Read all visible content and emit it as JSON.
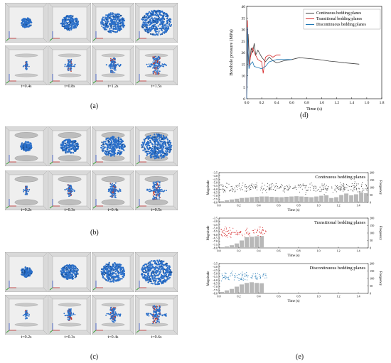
{
  "panels": {
    "a": {
      "label": "(a)",
      "times": [
        "t=0.4s",
        "t=0.8s",
        "t=1.2s",
        "t=1.5s"
      ]
    },
    "b": {
      "label": "(b)",
      "times": [
        "t=0.2s",
        "t=0.3s",
        "t=0.4s",
        "t=0.5s"
      ]
    },
    "c": {
      "label": "(c)",
      "times": [
        "t=0.2s",
        "t=0.3s",
        "t=0.4s",
        "t=0.6s"
      ]
    },
    "d": {
      "label": "(d)"
    },
    "e": {
      "label": "(e)"
    }
  },
  "colors": {
    "continuous": "#404040",
    "transitional": "#d62728",
    "discontinuous": "#1f77b4",
    "particle": "#2a6fc9",
    "bar": "#b8b8b8"
  },
  "chart_data": [
    {
      "type": "line",
      "xlabel": "Time (s)",
      "ylabel": "Borehole pressure (MPa)",
      "xlim": [
        0.0,
        1.8
      ],
      "ylim": [
        0,
        40
      ],
      "xticks": [
        "0.0",
        "0.2",
        "0.4",
        "0.6",
        "0.8",
        "1.0",
        "1.2",
        "1.4",
        "1.6",
        "1.8"
      ],
      "yticks": [
        "0",
        "5",
        "10",
        "15",
        "20",
        "25",
        "30",
        "35",
        "40"
      ],
      "legend": "top-right",
      "series": [
        {
          "name": "Continuous bedding planes",
          "color": "#404040",
          "x": [
            0,
            0.02,
            0.04,
            0.06,
            0.08,
            0.1,
            0.12,
            0.15,
            0.2,
            0.25,
            0.3,
            0.35,
            0.4,
            0.5,
            0.6,
            0.7,
            0.8,
            0.9,
            1.0,
            1.1,
            1.2,
            1.3,
            1.4,
            1.5
          ],
          "y": [
            0,
            28,
            15,
            22,
            20,
            24,
            19,
            21,
            18,
            16,
            18,
            16.5,
            15.5,
            16.5,
            17,
            17.8,
            17.5,
            17.2,
            16.8,
            16.3,
            16,
            15.6,
            15.3,
            15
          ]
        },
        {
          "name": "Transitional bedding planes",
          "color": "#d62728",
          "x": [
            0,
            0.01,
            0.02,
            0.03,
            0.05,
            0.08,
            0.1,
            0.15,
            0.2,
            0.22,
            0.25,
            0.3,
            0.35,
            0.4,
            0.45
          ],
          "y": [
            0,
            34,
            20,
            14,
            18,
            22,
            20,
            17,
            16,
            11,
            18,
            19,
            18,
            19,
            19
          ]
        },
        {
          "name": "Discontinuous bedding planes",
          "color": "#1f77b4",
          "x": [
            0,
            0.01,
            0.02,
            0.03,
            0.05,
            0.08,
            0.1,
            0.15,
            0.2,
            0.25,
            0.3,
            0.35,
            0.4,
            0.5,
            0.6
          ],
          "y": [
            0,
            31,
            20,
            13,
            15,
            16,
            14,
            13.5,
            13,
            14,
            16,
            16.5,
            17,
            17,
            17
          ]
        }
      ]
    },
    {
      "type": "scatter",
      "title": "Continuous bedding planes",
      "xlabel": "Time (s)",
      "ylabel": "Magnitude",
      "y2label": "Frequency",
      "xlim": [
        0,
        1.5
      ],
      "ylim": [
        -8.0,
        -3.5
      ],
      "y2lim": [
        0,
        200
      ],
      "xticks": [
        "0.0",
        "0.2",
        "0.4",
        "0.6",
        "0.8",
        "1.0",
        "1.2",
        "1.4"
      ],
      "yticks": [
        "-3.5",
        "-4.0",
        "-4.5",
        "-5.0",
        "-5.5",
        "-6.0",
        "-6.5",
        "-7.0",
        "-7.5",
        "-8.0"
      ],
      "y2ticks": [
        "0",
        "50",
        "100",
        "150",
        "200"
      ],
      "color": "#404040",
      "tmax": 1.5,
      "mag_center": -5.8,
      "bins": [
        0.05,
        0.1,
        0.15,
        0.2,
        0.25,
        0.3,
        0.35,
        0.4,
        0.45,
        0.5,
        0.55,
        0.6,
        0.65,
        0.7,
        0.75,
        0.8,
        0.85,
        0.9,
        0.95,
        1.0,
        1.05,
        1.1,
        1.15,
        1.2,
        1.25,
        1.3,
        1.35,
        1.4,
        1.45,
        1.5
      ],
      "freq": [
        8,
        15,
        20,
        25,
        30,
        32,
        35,
        38,
        40,
        40,
        38,
        36,
        35,
        38,
        40,
        42,
        40,
        38,
        35,
        40,
        45,
        48,
        30,
        35,
        50,
        60,
        48,
        55,
        68,
        62
      ]
    },
    {
      "type": "scatter",
      "title": "Transitional bedding planes",
      "xlabel": "Time (s)",
      "ylabel": "Magnitude",
      "y2label": "Frequency",
      "xlim": [
        0,
        1.5
      ],
      "ylim": [
        -8.0,
        -3.5
      ],
      "y2lim": [
        0,
        200
      ],
      "xticks": [
        "0.0",
        "0.2",
        "0.4",
        "0.6",
        "0.8",
        "1.0",
        "1.2",
        "1.4"
      ],
      "yticks": [
        "-3.5",
        "-4.0",
        "-4.5",
        "-5.0",
        "-5.5",
        "-6.0",
        "-6.5",
        "-7.0",
        "-7.5",
        "-8.0"
      ],
      "y2ticks": [
        "0",
        "50",
        "100",
        "150",
        "200"
      ],
      "color": "#d62728",
      "tmax": 0.48,
      "mag_center": -5.7,
      "bins": [
        0.05,
        0.1,
        0.15,
        0.2,
        0.25,
        0.3,
        0.35,
        0.4,
        0.45
      ],
      "freq": [
        5,
        10,
        18,
        30,
        50,
        72,
        75,
        78,
        80
      ]
    },
    {
      "type": "scatter",
      "title": "Discontinuous bedding planes",
      "xlabel": "Time (s)",
      "ylabel": "Magnitude",
      "y2label": "Frequency",
      "xlim": [
        0,
        1.5
      ],
      "ylim": [
        -8.0,
        -3.5
      ],
      "y2lim": [
        0,
        200
      ],
      "xticks": [
        "0.0",
        "0.2",
        "0.4",
        "0.6",
        "0.8",
        "1.0",
        "1.2",
        "1.4"
      ],
      "yticks": [
        "-3.5",
        "-4.0",
        "-4.5",
        "-5.0",
        "-5.5",
        "-6.0",
        "-6.5",
        "-7.0",
        "-7.5",
        "-8.0"
      ],
      "y2ticks": [
        "0",
        "50",
        "100",
        "150",
        "200"
      ],
      "color": "#1f77b4",
      "tmax": 0.48,
      "mag_center": -5.4,
      "bins": [
        0.05,
        0.1,
        0.15,
        0.2,
        0.25,
        0.3,
        0.35,
        0.4,
        0.45
      ],
      "freq": [
        10,
        20,
        30,
        45,
        60,
        70,
        75,
        70,
        68
      ]
    }
  ]
}
